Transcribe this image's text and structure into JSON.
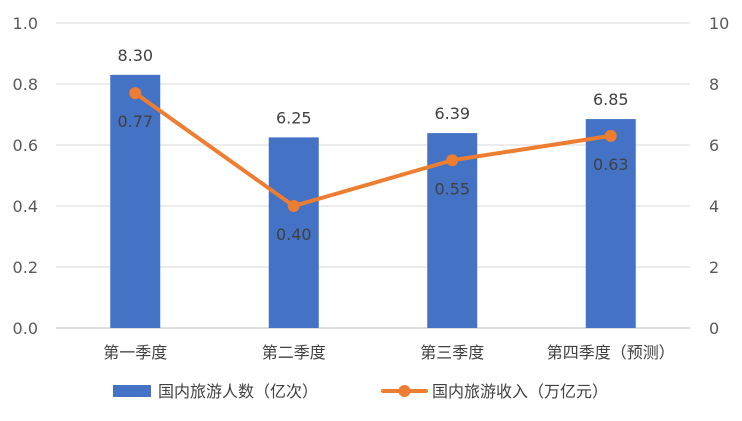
{
  "chart_data": {
    "type": "bar",
    "categories": [
      "第一季度",
      "第二季度",
      "第三季度",
      "第四季度（预测）"
    ],
    "series": [
      {
        "name": "国内旅游人数（亿次）",
        "type": "bar",
        "axis": "right",
        "values": [
          8.3,
          6.25,
          6.39,
          6.85
        ],
        "labels": [
          "8.30",
          "6.25",
          "6.39",
          "6.85"
        ],
        "color": "#4472C4"
      },
      {
        "name": "国内旅游收入（万亿元）",
        "type": "line",
        "axis": "left",
        "values": [
          0.77,
          0.4,
          0.55,
          0.63
        ],
        "labels": [
          "0.77",
          "0.40",
          "0.55",
          "0.63"
        ],
        "color": "#ED7D31"
      }
    ],
    "left_axis": {
      "ylim": [
        0,
        1.0
      ],
      "ticks": [
        0,
        0.2,
        0.4,
        0.6,
        0.8,
        1.0
      ],
      "tick_labels": [
        "0.0",
        "0.2",
        "0.4",
        "0.6",
        "0.8",
        "1.0"
      ]
    },
    "right_axis": {
      "ylim": [
        0,
        10
      ],
      "ticks": [
        0,
        2,
        4,
        6,
        8,
        10
      ],
      "tick_labels": [
        "0",
        "2",
        "4",
        "6",
        "8",
        "10"
      ]
    },
    "grid": true,
    "legend_position": "bottom"
  },
  "colors": {
    "grid": "#D9D9D9",
    "axis": "#BFBFBF",
    "text": "#595959"
  }
}
